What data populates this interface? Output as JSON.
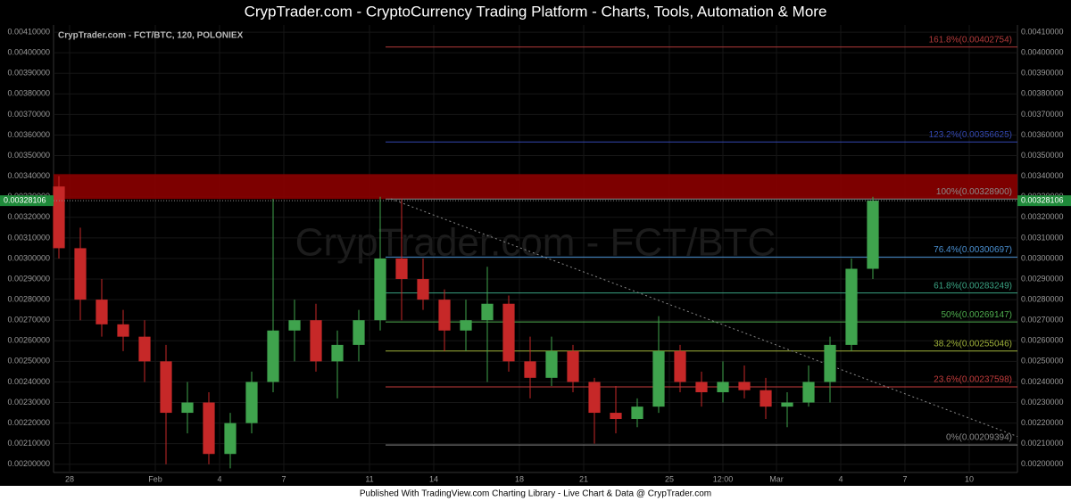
{
  "banner": "CrypTrader.com  -  CryptoCurrency Trading Platform  -  Charts, Tools, Automation & More",
  "footer": "Published With TradingView.com Charting Library - Live Chart & Data @ CrypTrader.com",
  "chart_data": {
    "type": "candlestick",
    "title": "CrypTrader.com - FCT/BTC, 120, POLONIEX",
    "watermark": "CrypTrader.com - FCT/BTC",
    "x": [
      -4.5,
      -3.5,
      -2.5,
      -1.5,
      -0.5,
      0.5,
      1.5,
      2.5,
      3.5,
      4.5,
      5.5,
      6.5,
      7.5,
      8.5,
      9.5,
      10.5,
      11.5,
      12.5,
      13.5,
      14.5,
      15.5,
      16.5,
      17.5,
      18.5,
      19.5,
      20.5,
      21.5,
      22.5,
      23.5,
      24.5,
      25.5,
      26.5,
      27.5,
      28.5,
      29.5,
      30.5,
      31.5,
      32.5,
      33.5
    ],
    "open": [
      0.00335,
      0.00305,
      0.0028,
      0.00268,
      0.00262,
      0.0025,
      0.00225,
      0.0023,
      0.00205,
      0.0022,
      0.0024,
      0.00265,
      0.0027,
      0.0025,
      0.00258,
      0.0027,
      0.003,
      0.0029,
      0.0028,
      0.00265,
      0.0027,
      0.00278,
      0.0025,
      0.00242,
      0.00255,
      0.0024,
      0.00225,
      0.00222,
      0.00228,
      0.00255,
      0.0024,
      0.00235,
      0.0024,
      0.00236,
      0.00228,
      0.0023,
      0.0024,
      0.00258,
      0.00295
    ],
    "high": [
      0.0034,
      0.00315,
      0.0029,
      0.00275,
      0.0027,
      0.00258,
      0.0024,
      0.00235,
      0.00225,
      0.00245,
      0.00329,
      0.0028,
      0.00278,
      0.00265,
      0.00275,
      0.0033,
      0.00329,
      0.003,
      0.00285,
      0.0028,
      0.00296,
      0.00282,
      0.00262,
      0.00262,
      0.00258,
      0.00242,
      0.00238,
      0.00232,
      0.00272,
      0.00258,
      0.00245,
      0.0025,
      0.00248,
      0.00242,
      0.00235,
      0.00248,
      0.00262,
      0.003,
      0.0033
    ],
    "low": [
      0.003,
      0.0027,
      0.00262,
      0.00255,
      0.0024,
      0.002,
      0.00215,
      0.002,
      0.00198,
      0.00215,
      0.00235,
      0.0025,
      0.00245,
      0.00232,
      0.0025,
      0.00265,
      0.0027,
      0.00275,
      0.00255,
      0.00255,
      0.0024,
      0.00245,
      0.00232,
      0.00238,
      0.00235,
      0.0021,
      0.00215,
      0.00218,
      0.00225,
      0.00235,
      0.00228,
      0.0023,
      0.00232,
      0.00222,
      0.00218,
      0.00228,
      0.0023,
      0.00255,
      0.0029
    ],
    "close": [
      0.00305,
      0.0028,
      0.00268,
      0.00262,
      0.0025,
      0.00225,
      0.0023,
      0.00205,
      0.0022,
      0.0024,
      0.00265,
      0.0027,
      0.0025,
      0.00258,
      0.0027,
      0.003,
      0.0029,
      0.0028,
      0.00265,
      0.0027,
      0.00278,
      0.0025,
      0.00242,
      0.00255,
      0.0024,
      0.00225,
      0.00222,
      0.00228,
      0.00255,
      0.0024,
      0.00235,
      0.0024,
      0.00236,
      0.00228,
      0.0023,
      0.0024,
      0.00258,
      0.00295,
      0.00328106
    ],
    "up_color": "#3fa34d",
    "down_color": "#c62828",
    "xlim": [
      -4.75,
      40.25
    ],
    "xticks": [
      {
        "value": -4,
        "label": "28"
      },
      {
        "value": 0,
        "label": "Feb"
      },
      {
        "value": 3,
        "label": "4"
      },
      {
        "value": 6,
        "label": "7"
      },
      {
        "value": 10,
        "label": "11"
      },
      {
        "value": 13,
        "label": "14"
      },
      {
        "value": 17,
        "label": "18"
      },
      {
        "value": 20,
        "label": "21"
      },
      {
        "value": 24,
        "label": "25"
      },
      {
        "value": 26.5,
        "label": "12:00"
      },
      {
        "value": 29,
        "label": "Mar"
      },
      {
        "value": 32,
        "label": "4"
      },
      {
        "value": 35,
        "label": "7"
      },
      {
        "value": 38,
        "label": "10"
      }
    ],
    "ylim": [
      0.00196,
      0.004135
    ],
    "yticks": [
      {
        "value": 0.002,
        "label": "0.00200000"
      },
      {
        "value": 0.0021,
        "label": "0.00210000"
      },
      {
        "value": 0.0022,
        "label": "0.00220000"
      },
      {
        "value": 0.0023,
        "label": "0.00230000"
      },
      {
        "value": 0.0024,
        "label": "0.00240000"
      },
      {
        "value": 0.0025,
        "label": "0.00250000"
      },
      {
        "value": 0.0026,
        "label": "0.00260000"
      },
      {
        "value": 0.0027,
        "label": "0.00270000"
      },
      {
        "value": 0.0028,
        "label": "0.00280000"
      },
      {
        "value": 0.0029,
        "label": "0.00290000"
      },
      {
        "value": 0.003,
        "label": "0.00300000"
      },
      {
        "value": 0.0031,
        "label": "0.00310000"
      },
      {
        "value": 0.0032,
        "label": "0.00320000"
      },
      {
        "value": 0.0033,
        "label": "0.00330000"
      },
      {
        "value": 0.0034,
        "label": "0.00340000"
      },
      {
        "value": 0.0035,
        "label": "0.00350000"
      },
      {
        "value": 0.0036,
        "label": "0.00360000"
      },
      {
        "value": 0.0037,
        "label": "0.00370000"
      },
      {
        "value": 0.0038,
        "label": "0.00380000"
      },
      {
        "value": 0.0039,
        "label": "0.00390000"
      },
      {
        "value": 0.004,
        "label": "0.00400000"
      },
      {
        "value": 0.0041,
        "label": "0.00410000"
      }
    ],
    "grid": true,
    "fib_start_x": 10.75,
    "fib_levels": [
      {
        "label": "161.8%(0.00402754)",
        "value": 0.00402754,
        "color": "#b23a3a"
      },
      {
        "label": "123.2%(0.00356625)",
        "value": 0.00356625,
        "color": "#3347b0"
      },
      {
        "label": "100%(0.00328900)",
        "value": 0.003289,
        "color": "#8a8a8a"
      },
      {
        "label": "76.4%(0.00300697)",
        "value": 0.00300697,
        "color": "#4a8fd0"
      },
      {
        "label": "61.8%(0.00283249)",
        "value": 0.00283249,
        "color": "#3aa383"
      },
      {
        "label": "50%(0.00269147)",
        "value": 0.00269147,
        "color": "#4fae4f"
      },
      {
        "label": "38.2%(0.00255046)",
        "value": 0.00255046,
        "color": "#9fb23a"
      },
      {
        "label": "23.6%(0.00237598)",
        "value": 0.00237598,
        "color": "#c43c3c"
      },
      {
        "label": "0%(0.00209394)",
        "value": 0.00209394,
        "color": "#8a8a8a"
      }
    ],
    "zone": {
      "low": 0.003289,
      "high": 0.00341,
      "color": "#8b0000"
    },
    "trendline": {
      "x": [
        11,
        40.25
      ],
      "y": [
        0.00329,
        0.002135
      ]
    },
    "last_price": {
      "value": 0.00328106,
      "label": "0.00328106",
      "color": "#1f8a3a"
    }
  }
}
